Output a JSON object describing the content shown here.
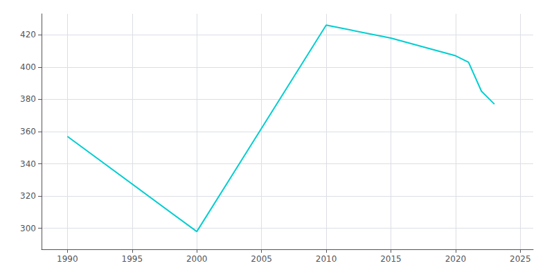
{
  "chart_data": {
    "type": "line",
    "x": [
      1990,
      2000,
      2010,
      2015,
      2020,
      2021,
      2022,
      2023
    ],
    "values": [
      357,
      298,
      426,
      418,
      407,
      403,
      385,
      377
    ],
    "color": "#00CED1",
    "xlim": [
      1988,
      2026
    ],
    "ylim": [
      287,
      433
    ],
    "xticks": [
      1990,
      1995,
      2000,
      2005,
      2010,
      2015,
      2020,
      2025
    ],
    "yticks": [
      300,
      320,
      340,
      360,
      380,
      400,
      420
    ],
    "grid": true
  }
}
